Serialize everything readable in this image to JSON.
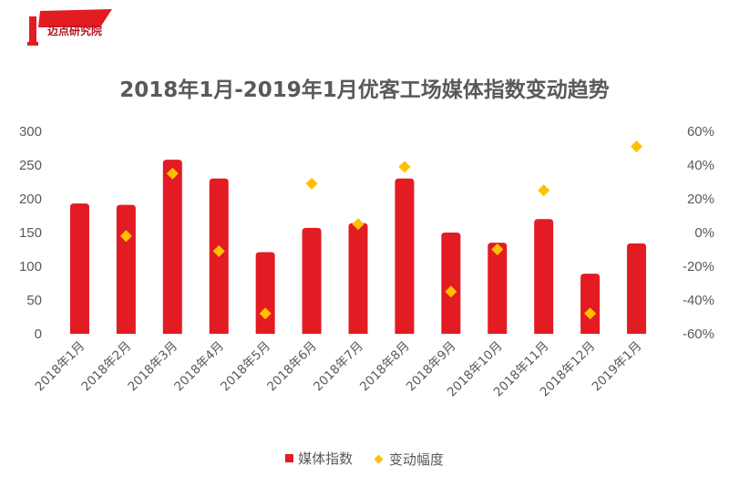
{
  "logo": {
    "text": "迈点研究院"
  },
  "chart_data": {
    "type": "bar",
    "title": "2018年1月-2019年1月优客工场媒体指数变动趋势",
    "categories": [
      "2018年1月",
      "2018年2月",
      "2018年3月",
      "2018年4月",
      "2018年5月",
      "2018年6月",
      "2018年7月",
      "2018年8月",
      "2018年9月",
      "2018年10月",
      "2018年11月",
      "2018年12月",
      "2019年1月"
    ],
    "y_left": {
      "min": 0,
      "max": 300,
      "ticks": [
        "0",
        "50",
        "100",
        "150",
        "200",
        "250",
        "300"
      ]
    },
    "y_right": {
      "min": -0.6,
      "max": 0.6,
      "ticks": [
        "-60%",
        "-40%",
        "-20%",
        "0%",
        "20%",
        "40%",
        "60%"
      ]
    },
    "series": [
      {
        "name": "媒体指数",
        "kind": "bar",
        "axis": "left",
        "color": "#e31b23",
        "values": [
          193,
          191,
          258,
          230,
          121,
          157,
          164,
          230,
          150,
          135,
          170,
          89,
          134
        ]
      },
      {
        "name": "变动幅度",
        "kind": "marker",
        "axis": "right",
        "color": "#ffc000",
        "values": [
          null,
          -0.02,
          0.35,
          -0.11,
          -0.48,
          0.29,
          0.05,
          0.39,
          -0.35,
          -0.1,
          0.25,
          -0.48,
          0.51
        ]
      }
    ],
    "legend_position": "bottom",
    "grid": false
  }
}
